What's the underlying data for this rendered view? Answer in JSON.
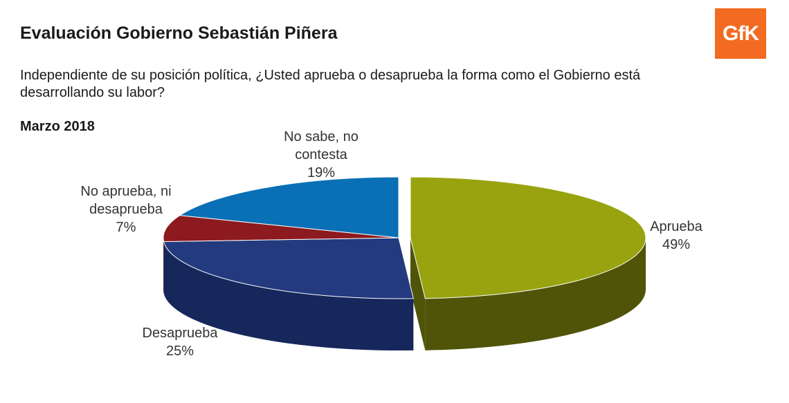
{
  "header": {
    "title": "Evaluación Gobierno Sebastián Piñera",
    "question": "Independiente de su posición política, ¿Usted aprueba o desaprueba la forma como el Gobierno está desarrollando su labor?",
    "period": "Marzo 2018",
    "logo_text": "GfK"
  },
  "chart_data": {
    "type": "pie",
    "style": "3d-exploded",
    "title": "",
    "slices": [
      {
        "label": "Aprueba",
        "value": 49,
        "value_label": "49%",
        "color": "#98a30f",
        "side_color": "#4f5409"
      },
      {
        "label": "Desaprueba",
        "value": 25,
        "value_label": "25%",
        "color": "#233a7f",
        "side_color": "#16275c"
      },
      {
        "label": "No aprueba, ni desaprueba",
        "value": 7,
        "value_label": "7%",
        "color": "#8c1a1e",
        "side_color": "#5a0e11"
      },
      {
        "label": "No sabe, no contesta",
        "value": 19,
        "value_label": "19%",
        "color": "#0a70b5",
        "side_color": "#07507f"
      }
    ]
  }
}
